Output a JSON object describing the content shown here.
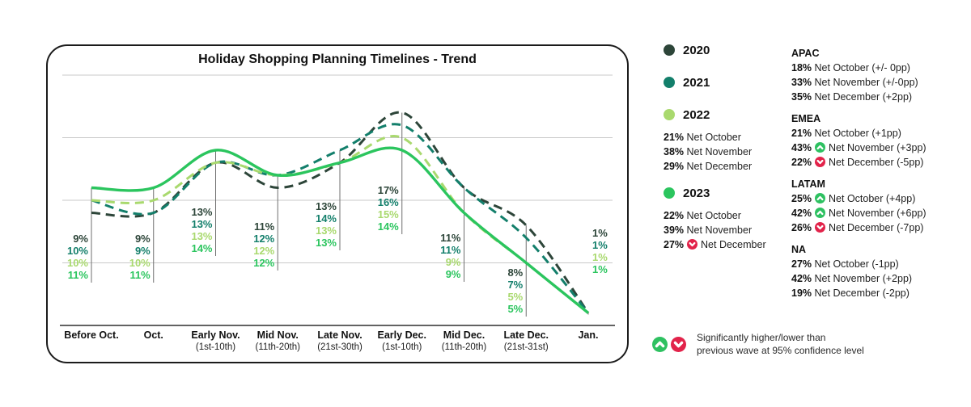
{
  "chart_data": {
    "type": "line",
    "title": "Holiday Shopping Planning Timelines - Trend",
    "unit": "%",
    "ylim": [
      0,
      20
    ],
    "grid_step": 5,
    "grid": true,
    "legend_position": "right",
    "categories": [
      "Before Oct.",
      "Oct.",
      "Early Nov.",
      "Mid Nov.",
      "Late Nov.",
      "Early Dec.",
      "Mid Dec.",
      "Late Dec.",
      "Jan."
    ],
    "category_sublabels": [
      "",
      "",
      "(1st-10th)",
      "(11th-20th)",
      "(21st-30th)",
      "(1st-10th)",
      "(11th-20th)",
      "(21st-31st)",
      ""
    ],
    "series": [
      {
        "name": "2020",
        "color": "#2d4539",
        "style": "dashed",
        "values": [
          9,
          9,
          13,
          11,
          13,
          17,
          11,
          8,
          1
        ]
      },
      {
        "name": "2021",
        "color": "#137f6b",
        "style": "dashed",
        "values": [
          10,
          9,
          13,
          12,
          14,
          16,
          11,
          7,
          1
        ]
      },
      {
        "name": "2022",
        "color": "#a9d96e",
        "style": "dashed",
        "values": [
          10,
          10,
          13,
          12,
          13,
          15,
          9,
          5,
          1
        ]
      },
      {
        "name": "2023",
        "color": "#2bc55e",
        "style": "solid",
        "values": [
          11,
          11,
          14,
          12,
          13,
          14,
          9,
          5,
          1
        ]
      }
    ]
  },
  "legend_years": [
    {
      "label": "2020",
      "color": "#2d4539",
      "rows": []
    },
    {
      "label": "2021",
      "color": "#137f6b",
      "rows": []
    },
    {
      "label": "2022",
      "color": "#a9d96e",
      "rows": [
        {
          "pct": "21%",
          "arrow": null,
          "text": "Net October"
        },
        {
          "pct": "38%",
          "arrow": null,
          "text": "Net November"
        },
        {
          "pct": "29%",
          "arrow": null,
          "text": "Net December"
        }
      ]
    },
    {
      "label": "2023",
      "color": "#2bc55e",
      "rows": [
        {
          "pct": "22%",
          "arrow": null,
          "text": "Net October"
        },
        {
          "pct": "39%",
          "arrow": null,
          "text": "Net November"
        },
        {
          "pct": "27%",
          "arrow": "down",
          "text": "Net December"
        }
      ]
    }
  ],
  "regions": [
    {
      "name": "APAC",
      "rows": [
        {
          "pct": "18%",
          "arrow": null,
          "text": "Net October (+/- 0pp)"
        },
        {
          "pct": "33%",
          "arrow": null,
          "text": "Net November (+/-0pp)"
        },
        {
          "pct": "35%",
          "arrow": null,
          "text": "Net December (+2pp)"
        }
      ]
    },
    {
      "name": "EMEA",
      "rows": [
        {
          "pct": "21%",
          "arrow": null,
          "text": "Net October (+1pp)"
        },
        {
          "pct": "43%",
          "arrow": "up",
          "text": "Net November (+3pp)"
        },
        {
          "pct": "22%",
          "arrow": "down",
          "text": "Net December (-5pp)"
        }
      ]
    },
    {
      "name": "LATAM",
      "rows": [
        {
          "pct": "25%",
          "arrow": "up",
          "text": "Net October (+4pp)"
        },
        {
          "pct": "42%",
          "arrow": "up",
          "text": "Net November (+6pp)"
        },
        {
          "pct": "26%",
          "arrow": "down",
          "text": "Net December (-7pp)"
        }
      ]
    },
    {
      "name": "NA",
      "rows": [
        {
          "pct": "27%",
          "arrow": null,
          "text": "Net October (-1pp)"
        },
        {
          "pct": "42%",
          "arrow": null,
          "text": "Net November (+2pp)"
        },
        {
          "pct": "19%",
          "arrow": null,
          "text": "Net December (-2pp)"
        }
      ]
    }
  ],
  "footnote": {
    "line1": "Significantly higher/lower than",
    "line2": "previous wave at 95% confidence level"
  },
  "colors": {
    "sig_up": "#2ec161",
    "sig_down": "#e2234a",
    "grid": "#c9c9c9",
    "axis": "#2e2e2e",
    "marker": "#6f6f6f"
  }
}
